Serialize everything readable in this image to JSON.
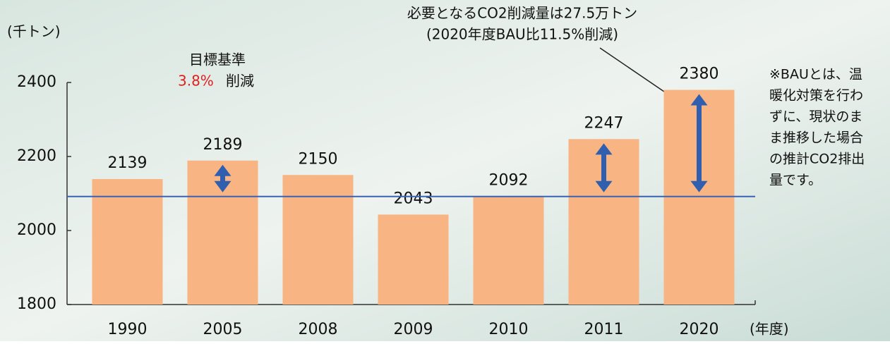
{
  "chart_data": {
    "type": "bar",
    "y_label": "(千トン)",
    "x_label": "(年度)",
    "categories": [
      "1990",
      "2005",
      "2008",
      "2009",
      "2010",
      "2011",
      "2020"
    ],
    "values": [
      2139,
      2189,
      2150,
      2043,
      2092,
      2247,
      2380
    ],
    "color": "#f8b482",
    "ylim": [
      1800,
      2400
    ],
    "yticks": [
      1800,
      2000,
      2200,
      2400
    ],
    "reference_line": 2092,
    "reference_color": "#3a62b4",
    "arrow_categories": [
      1,
      5,
      6
    ],
    "target_annotation": {
      "title": "目標基準",
      "rate": "3.8%",
      "suffix": "削減"
    },
    "callout": [
      "必要となるCO2削減量は27.5万トン",
      "(2020年度BAU比11.5%削減)"
    ],
    "note": [
      "※BAUとは、温",
      "暖化対策を行わ",
      "ずに、現状のま",
      "ま推移した場合",
      "の推計CO2排出",
      "量です。"
    ]
  }
}
